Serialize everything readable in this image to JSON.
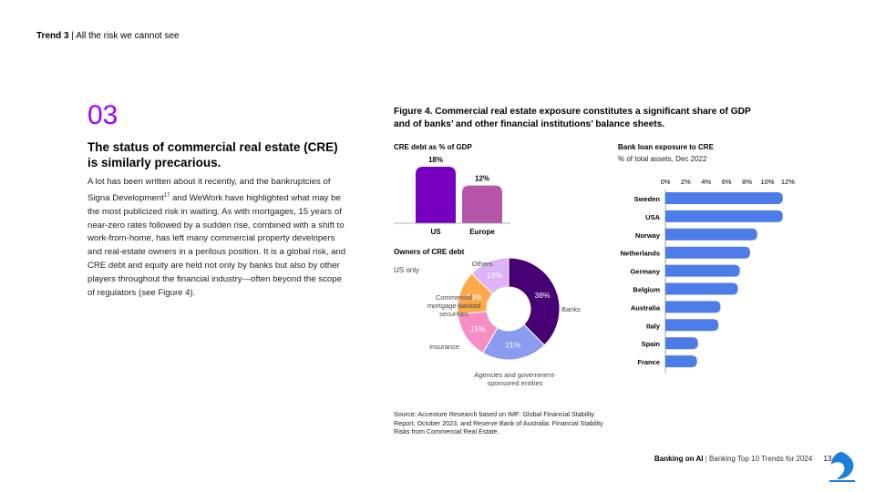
{
  "header": {
    "trend": "Trend 3",
    "sep": "|",
    "title": "All the risk we cannot see"
  },
  "section_number": "03",
  "headline": "The status of commercial real estate (CRE) is similarly precarious.",
  "body": {
    "p1": "A lot has been written about it recently, and the bankruptcies of Signa Development",
    "sup": "17",
    "p2": " and WeWork have highlighted what may be the most publicized risk in waiting. As with mortgages, 15 years of near-zero rates followed by a sudden rise, combined with a shift to work-from-home, has left many commercial property developers and real-estate owners in a perilous position. It is a global risk, and CRE debt and equity are held not only by banks but also by other players throughout the financial industry—often beyond the scope of regulators (see Figure 4)."
  },
  "figure_title": "Figure 4. Commercial real estate exposure constitutes a significant share of GDP and of banks’ and other financial institutions’ balance sheets.",
  "source": "Source: Accenture Research based on IMF: Global Financial Stability Report, October 2023, and Reserve Bank of Australia: Financial Stability Risks from Commercial Real Estate.",
  "footer": {
    "brand": "Banking on AI",
    "sep": "|",
    "title": "Banking Top 10 Trends for 2024",
    "page": "13"
  },
  "chart_data": [
    {
      "type": "bar",
      "title": "CRE debt as % of GDP",
      "categories": [
        "US",
        "Europe"
      ],
      "values": [
        18,
        12
      ],
      "value_labels": [
        "18%",
        "12%"
      ],
      "colors": [
        "#7500c0",
        "#b455aa"
      ]
    },
    {
      "type": "pie",
      "title": "Owners of CRE debt",
      "subtitle": "US only",
      "labels": [
        "Banks",
        "Agencies and government-sponsored entities",
        "Insurance",
        "Commercial mortgage-backed securities",
        "Others"
      ],
      "values": [
        38,
        21,
        15,
        14,
        13
      ],
      "value_labels": [
        "38%",
        "21%",
        "15%",
        "14%",
        "13%"
      ],
      "colors": [
        "#460073",
        "#8a9cf0",
        "#f78ec3",
        "#ffa94d",
        "#dcb4f5"
      ]
    },
    {
      "type": "bar",
      "orientation": "horizontal",
      "title": "Bank loan exposure to CRE",
      "subtitle": "% of total assets, Dec 2022",
      "categories": [
        "Sweden",
        "USA",
        "Norway",
        "Netherlands",
        "Germany",
        "Belgium",
        "Australia",
        "Italy",
        "Spain",
        "France"
      ],
      "values": [
        11.5,
        11.5,
        9,
        8.3,
        7.3,
        7.1,
        5.4,
        5.2,
        3.2,
        3.1
      ],
      "xlim": [
        0,
        12
      ],
      "ticks": [
        "0%",
        "2%",
        "4%",
        "6%",
        "8%",
        "10%",
        "12%"
      ],
      "color": "#4d7ce8"
    }
  ]
}
